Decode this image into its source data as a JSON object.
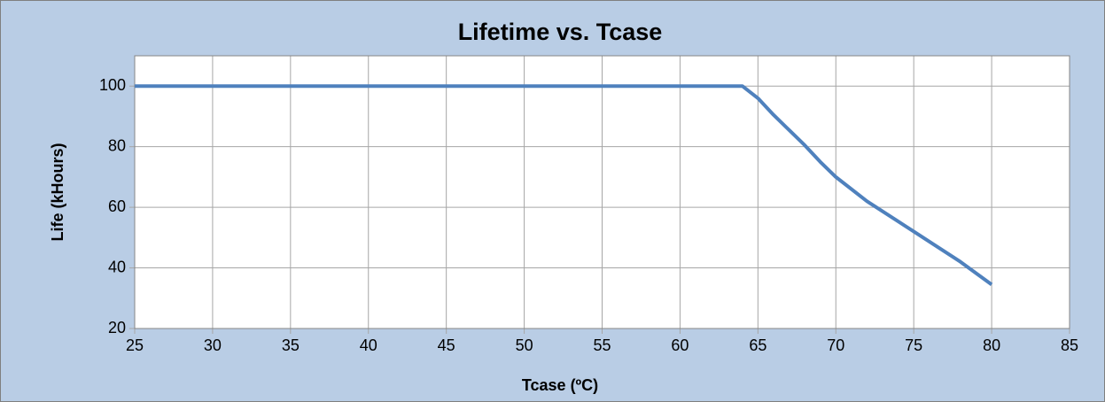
{
  "chart_data": {
    "type": "line",
    "title": "Lifetime vs. Tcase",
    "x_label": "Tcase (ºC)",
    "y_label": "Life (kHours)",
    "x": [
      25,
      64,
      65,
      66,
      67,
      68,
      69,
      70,
      72,
      75,
      78,
      80
    ],
    "series": [
      {
        "name": "Life",
        "color": "#4f81bd",
        "values": [
          100,
          100,
          96,
          90.5,
          85.5,
          80.5,
          75,
          70,
          62,
          52,
          42,
          34.5
        ]
      }
    ],
    "xlim": [
      25,
      85
    ],
    "xticks": [
      25,
      30,
      35,
      40,
      45,
      50,
      55,
      60,
      65,
      70,
      75,
      80,
      85
    ],
    "ylim": [
      20,
      110
    ],
    "yticks": [
      20,
      40,
      60,
      80,
      100
    ],
    "grid": true
  }
}
